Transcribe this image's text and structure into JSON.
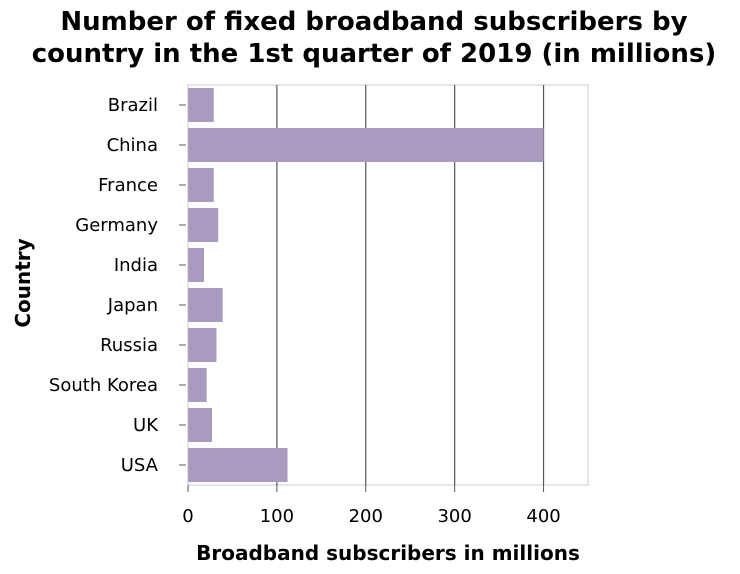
{
  "chart_data": {
    "type": "bar",
    "orientation": "horizontal",
    "title_lines": [
      "Number of fixed broadband subscribers by",
      "country in the 1st quarter of 2019 (in millions)"
    ],
    "xlabel": "Broadband subscribers in millions",
    "ylabel": "Country",
    "categories": [
      "Brazil",
      "China",
      "France",
      "Germany",
      "India",
      "Japan",
      "Russia",
      "South Korea",
      "UK",
      "USA"
    ],
    "values": [
      29,
      400,
      29,
      34,
      18,
      39,
      32,
      21,
      27,
      112
    ],
    "xlim": [
      0,
      450
    ],
    "xticks": [
      "0",
      "100",
      "200",
      "300",
      "400"
    ],
    "grid": true,
    "bar_color": "#a89bbf"
  }
}
